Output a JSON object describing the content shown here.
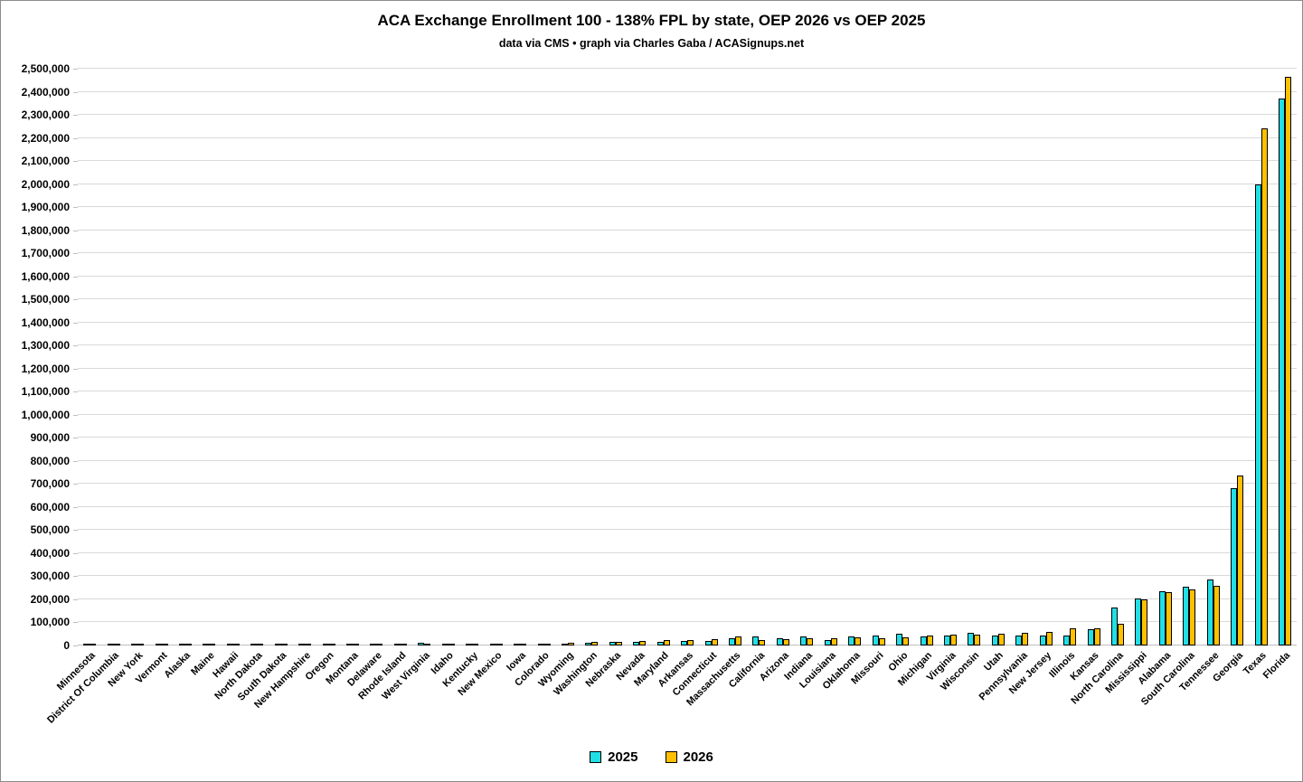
{
  "page": {
    "title": "ACA Exchange Enrollment 100 - 138% FPL by state, OEP 2026 vs OEP 2025",
    "subtitle": "data via CMS • graph via Charles Gaba / ACASignups.net"
  },
  "legend": {
    "items": [
      {
        "label": "2025",
        "color": "#22DFE6"
      },
      {
        "label": "2026",
        "color": "#FFC000"
      }
    ],
    "position": "bottom"
  },
  "colors": {
    "series_2025": "#22DFE6",
    "series_2026": "#FFC000",
    "bar_border": "#000000",
    "gridline": "#D9D9D9",
    "text": "#000000"
  },
  "chart_data": {
    "type": "bar",
    "title": "ACA Exchange Enrollment 100 - 138% FPL by state, OEP 2026 vs OEP 2025",
    "subtitle": "data via CMS • graph via Charles Gaba / ACASignups.net",
    "xlabel": "",
    "ylabel": "",
    "ylim": [
      0,
      2500000
    ],
    "ytick_step": 100000,
    "grid": true,
    "legend_position": "bottom",
    "categories": [
      "Minnesota",
      "District Of Columbia",
      "New York",
      "Vermont",
      "Alaska",
      "Maine",
      "Hawaii",
      "North Dakota",
      "South Dakota",
      "New Hampshire",
      "Oregon",
      "Montana",
      "Delaware",
      "Rhode Island",
      "West Virginia",
      "Idaho",
      "Kentucky",
      "New Mexico",
      "Iowa",
      "Colorado",
      "Wyoming",
      "Washington",
      "Nebraska",
      "Nevada",
      "Maryland",
      "Arkansas",
      "Connecticut",
      "Massachusetts",
      "California",
      "Arizona",
      "Indiana",
      "Louisiana",
      "Oklahoma",
      "Missouri",
      "Ohio",
      "Michigan",
      "Virginia",
      "Wisconsin",
      "Utah",
      "Pennsylvania",
      "New Jersey",
      "Illinois",
      "Kansas",
      "North Carolina",
      "Mississippi",
      "Alabama",
      "South Carolina",
      "Tennessee",
      "Georgia",
      "Texas",
      "Florida"
    ],
    "series": [
      {
        "name": "2025",
        "color": "#22DFE6",
        "values": [
          200,
          300,
          500,
          500,
          700,
          900,
          1000,
          1200,
          1400,
          1500,
          1700,
          2000,
          8000,
          2500,
          10000,
          3000,
          9000,
          8000,
          7000,
          8000,
          8000,
          11000,
          14000,
          15000,
          16000,
          18000,
          20000,
          30000,
          39000,
          31000,
          38000,
          22000,
          39000,
          42000,
          52000,
          40000,
          45000,
          55000,
          42000,
          42000,
          44000,
          45000,
          70000,
          163000,
          205000,
          237000,
          254000,
          288000,
          683000,
          2000000,
          2370000
        ]
      },
      {
        "name": "2026",
        "color": "#FFC000",
        "values": [
          300,
          400,
          600,
          700,
          900,
          1100,
          1300,
          1500,
          1800,
          2000,
          2200,
          2500,
          3000,
          3000,
          3500,
          4000,
          6000,
          7000,
          8000,
          9000,
          10000,
          15000,
          17000,
          20000,
          22000,
          24000,
          26000,
          38000,
          22000,
          26000,
          31000,
          33000,
          36000,
          30000,
          35000,
          42000,
          48000,
          48000,
          52000,
          55000,
          58000,
          73000,
          76000,
          93000,
          199000,
          230000,
          243000,
          257000,
          738000,
          2240000,
          2465000
        ]
      }
    ]
  }
}
